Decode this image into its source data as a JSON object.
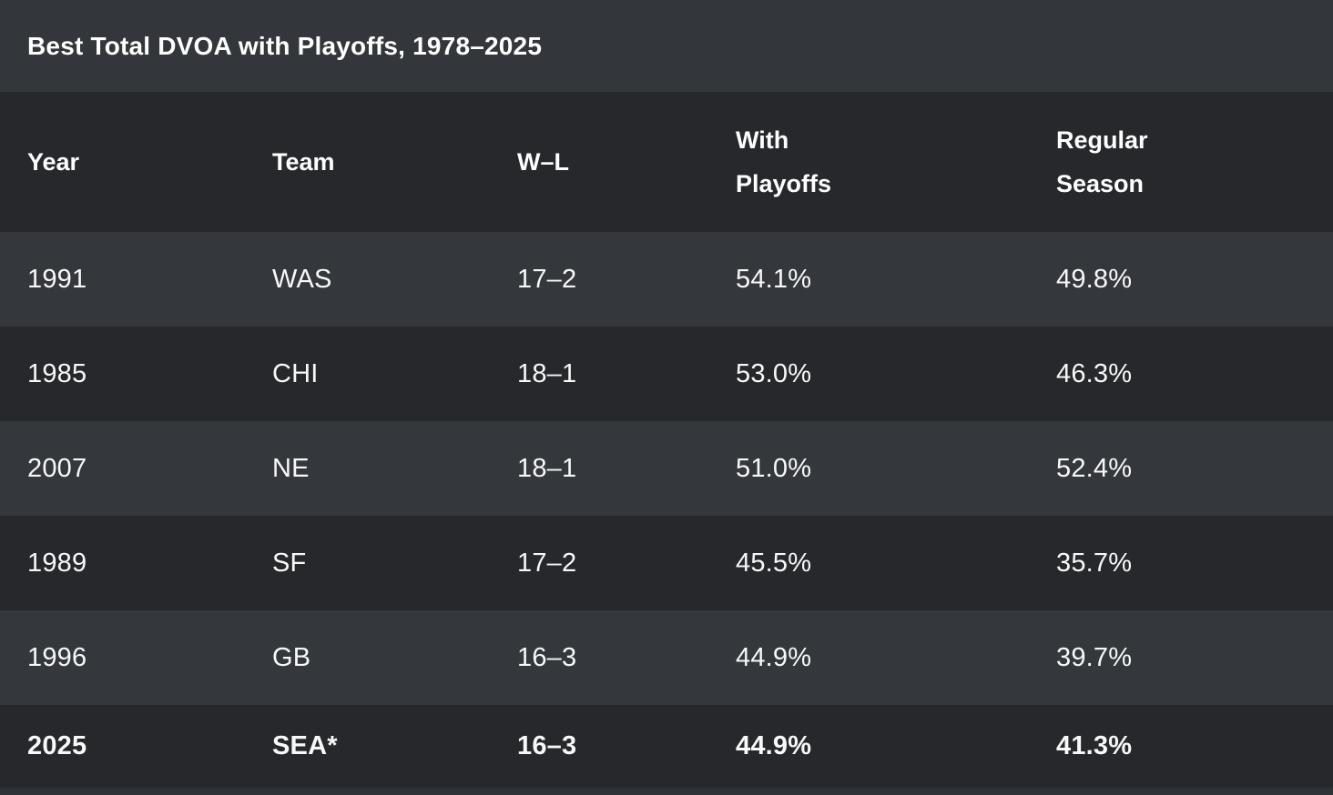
{
  "chart_data": {
    "type": "table",
    "title": "Best Total DVOA with Playoffs, 1978–2025",
    "columns": [
      "Year",
      "Team",
      "W–L",
      "With Playoffs",
      "Regular Season"
    ],
    "rows": [
      [
        "1991",
        "WAS",
        "17–2",
        "54.1%",
        "49.8%"
      ],
      [
        "1985",
        "CHI",
        "18–1",
        "53.0%",
        "46.3%"
      ],
      [
        "2007",
        "NE",
        "18–1",
        "51.0%",
        "52.4%"
      ],
      [
        "1989",
        "SF",
        "17–2",
        "45.5%",
        "35.7%"
      ],
      [
        "1996",
        "GB",
        "16–3",
        "44.9%",
        "39.7%"
      ],
      [
        "2025",
        "SEA*",
        "16–3",
        "44.9%",
        "41.3%"
      ]
    ],
    "emphasized_row_index": 5,
    "layout_hints": {
      "row_striping": "rows alternate light/dark starting with light",
      "wrapped_headers": [
        "With Playoffs",
        "Regular Season"
      ]
    }
  },
  "colors": {
    "title_band": "#33363b",
    "header_band": "#26282c",
    "row_light": "#34373c",
    "row_dark": "#26282c",
    "footer_strip": "#2f3237",
    "text": "#f7f8f8"
  }
}
